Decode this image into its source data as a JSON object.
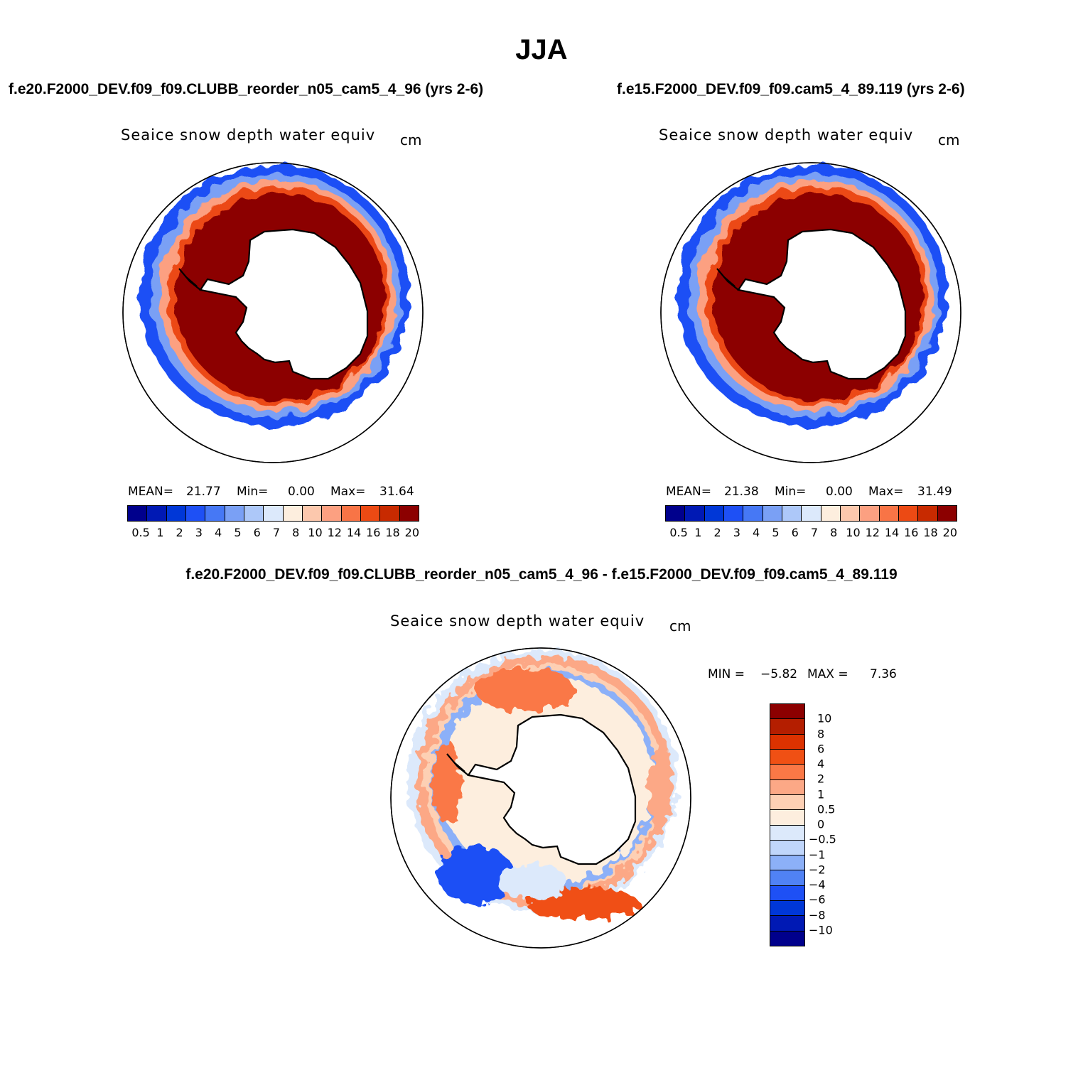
{
  "figure": {
    "title": "JJA",
    "variable_label": "Seaice snow depth water equiv",
    "units": "cm"
  },
  "panels": {
    "left": {
      "case_title": "f.e20.F2000_DEV.f09_f09.CLUBB_reorder_n05_cam5_4_96 (yrs 2-6)",
      "mean_label": "MEAN=",
      "mean_value": "21.77",
      "min_label": "Min=",
      "min_value": "0.00",
      "max_label": "Max=",
      "max_value": "31.64"
    },
    "right": {
      "case_title": "f.e15.F2000_DEV.f09_f09.cam5_4_89.119 (yrs 2-6)",
      "mean_label": "MEAN=",
      "mean_value": "21.38",
      "min_label": "Min=",
      "min_value": "0.00",
      "max_label": "Max=",
      "max_value": "31.49"
    },
    "diff": {
      "case_title": "f.e20.F2000_DEV.f09_f09.CLUBB_reorder_n05_cam5_4_96 - f.e15.F2000_DEV.f09_f09.cam5_4_89.119",
      "min_label": "MIN =",
      "min_value": "−5.82",
      "max_label": "MAX =",
      "max_value": "7.36"
    }
  },
  "colorbars": {
    "abs": {
      "ticks": [
        "0.5",
        "1",
        "2",
        "3",
        "4",
        "5",
        "6",
        "7",
        "8",
        "10",
        "12",
        "14",
        "16",
        "18",
        "20"
      ],
      "colors": [
        "#00008c",
        "#0019b4",
        "#0037d7",
        "#1e50f5",
        "#4678f5",
        "#7aa0f5",
        "#adc8f9",
        "#dce9fb",
        "#fdeede",
        "#fcc8ad",
        "#fca081",
        "#f87446",
        "#ec4a14",
        "#c82a00",
        "#8c0000"
      ]
    },
    "diff": {
      "ticks": [
        "10",
        "8",
        "6",
        "4",
        "2",
        "1",
        "0.5",
        "0",
        "−0.5",
        "−1",
        "−2",
        "−4",
        "−6",
        "−8",
        "−10"
      ],
      "colors": [
        "#8c0000",
        "#b41e00",
        "#dc3200",
        "#f05014",
        "#fa7846",
        "#fca886",
        "#fdd0b4",
        "#fdeede",
        "#dce9fb",
        "#c0d6fb",
        "#8cb0f8",
        "#5082f5",
        "#1e50f5",
        "#0037d7",
        "#0019b4",
        "#00008c"
      ]
    }
  },
  "chart_data": [
    {
      "type": "map",
      "projection": "south polar stereographic",
      "title": "f.e20.F2000_DEV.f09_f09.CLUBB_reorder_n05_cam5_4_96 (yrs 2-6)",
      "variable": "Seaice snow depth water equiv",
      "units": "cm",
      "season": "JJA",
      "levels": [
        0.5,
        1,
        2,
        3,
        4,
        5,
        6,
        7,
        8,
        10,
        12,
        14,
        16,
        18,
        20
      ],
      "mean": 21.77,
      "min": 0.0,
      "max": 31.64
    },
    {
      "type": "map",
      "projection": "south polar stereographic",
      "title": "f.e15.F2000_DEV.f09_f09.cam5_4_89.119 (yrs 2-6)",
      "variable": "Seaice snow depth water equiv",
      "units": "cm",
      "season": "JJA",
      "levels": [
        0.5,
        1,
        2,
        3,
        4,
        5,
        6,
        7,
        8,
        10,
        12,
        14,
        16,
        18,
        20
      ],
      "mean": 21.38,
      "min": 0.0,
      "max": 31.49
    },
    {
      "type": "map",
      "projection": "south polar stereographic",
      "title": "difference",
      "variable": "Seaice snow depth water equiv",
      "units": "cm",
      "levels": [
        -10,
        -8,
        -6,
        -4,
        -2,
        -1,
        -0.5,
        0,
        0.5,
        1,
        2,
        4,
        6,
        8,
        10
      ],
      "min": -5.82,
      "max": 7.36
    }
  ]
}
